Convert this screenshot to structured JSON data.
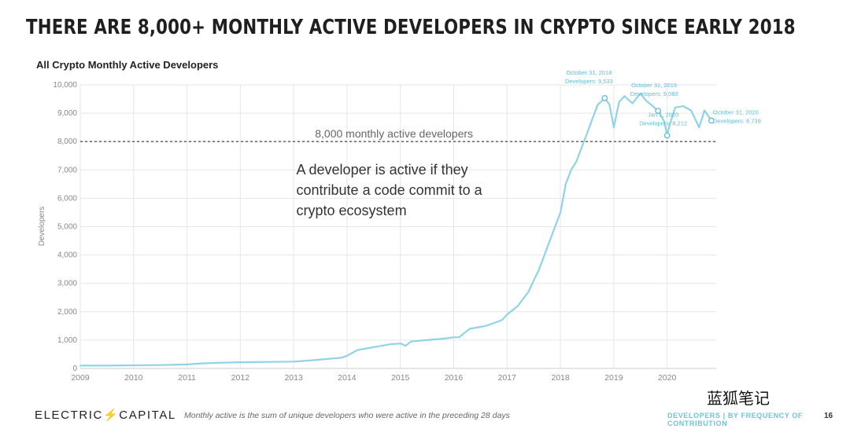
{
  "slide": {
    "title": "THERE ARE 8,000+ MONTHLY ACTIVE DEVELOPERS IN CRYPTO SINCE EARLY 2018",
    "footer_brand_left": "ELECTRIC",
    "footer_brand_right": "CAPITAL",
    "footnote": "Monthly active is the sum of unique developers who were active in the preceding 28 days",
    "section": "DEVELOPERS | BY FREQUENCY OF CONTRIBUTION",
    "page_number": "16",
    "watermark": "蓝狐笔记"
  },
  "colors": {
    "line": "#8fd3e6",
    "annotation": "#5fbcd6",
    "reference": "#555555",
    "brand_accent": "#6cc3dc"
  },
  "chart_data": {
    "type": "line",
    "title": "All Crypto Monthly Active Developers",
    "xlabel": "",
    "ylabel": "Developers",
    "xlim": [
      2009.0,
      2020.92
    ],
    "ylim": [
      0,
      10000
    ],
    "x_ticks": [
      "2009",
      "2010",
      "2011",
      "2012",
      "2013",
      "2014",
      "2015",
      "2016",
      "2017",
      "2018",
      "2019",
      "2020"
    ],
    "y_ticks": [
      "0",
      "1,000",
      "2,000",
      "3,000",
      "4,000",
      "5,000",
      "6,000",
      "7,000",
      "8,000",
      "9,000",
      "10,000"
    ],
    "grid": true,
    "reference_line": {
      "y": 8000,
      "label": "8,000 monthly active developers"
    },
    "callout": "A developer is active if they contribute a code commit to a crypto ecosystem",
    "annotations": [
      {
        "x": 2018.83,
        "y": 9533,
        "line1": "October 31, 2018",
        "line2": "Developers: 9,533"
      },
      {
        "x": 2019.83,
        "y": 9083,
        "line1": "October 31, 2019",
        "line2": "Developers: 9,083"
      },
      {
        "x": 2020.0,
        "y": 8212,
        "line1": "Jan 1, 2020",
        "line2": "Developers: 8,212"
      },
      {
        "x": 2020.83,
        "y": 8739,
        "line1": "October 31, 2020",
        "line2": "Developers: 8,739"
      }
    ],
    "series": [
      {
        "x": [
          2009.0,
          2009.5,
          2010.0,
          2010.5,
          2011.0,
          2011.3,
          2011.6,
          2012.0,
          2012.5,
          2013.0,
          2013.3,
          2013.6,
          2013.9,
          2014.0,
          2014.2,
          2014.5,
          2014.8,
          2015.0,
          2015.1,
          2015.2,
          2015.5,
          2015.8,
          2016.0,
          2016.1,
          2016.3,
          2016.6,
          2016.9,
          2017.0,
          2017.2,
          2017.4,
          2017.6,
          2017.8,
          2018.0,
          2018.1,
          2018.2,
          2018.3,
          2018.4,
          2018.5,
          2018.6,
          2018.7,
          2018.83,
          2018.92,
          2019.0,
          2019.1,
          2019.2,
          2019.35,
          2019.5,
          2019.6,
          2019.7,
          2019.83,
          2019.95,
          2020.0,
          2020.05,
          2020.15,
          2020.3,
          2020.45,
          2020.6,
          2020.7,
          2020.83
        ],
        "y": [
          100,
          100,
          110,
          120,
          140,
          180,
          200,
          220,
          230,
          240,
          280,
          330,
          380,
          450,
          650,
          750,
          850,
          880,
          800,
          950,
          1000,
          1050,
          1100,
          1100,
          1400,
          1500,
          1700,
          1900,
          2200,
          2700,
          3500,
          4500,
          5500,
          6500,
          7000,
          7300,
          7800,
          8300,
          8800,
          9300,
          9533,
          9300,
          8500,
          9400,
          9600,
          9350,
          9700,
          9450,
          9300,
          9083,
          8700,
          8212,
          8600,
          9200,
          9250,
          9100,
          8500,
          9100,
          8739
        ]
      }
    ]
  }
}
